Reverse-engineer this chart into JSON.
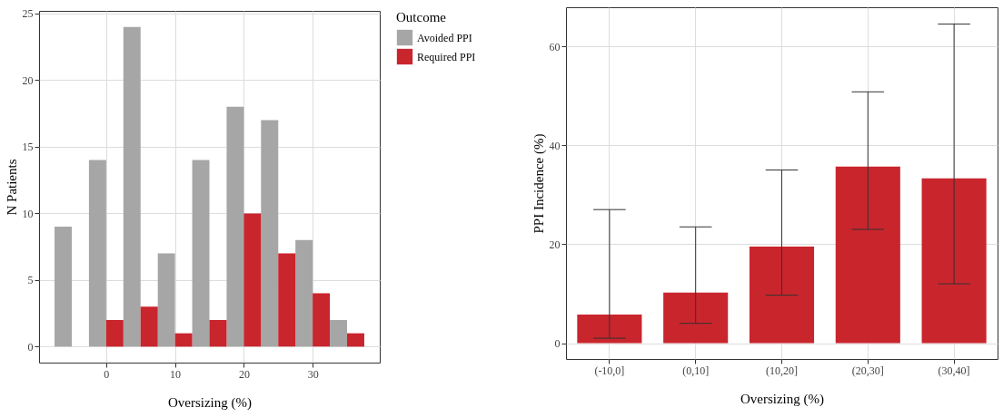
{
  "chart_data": [
    {
      "type": "bar",
      "xlabel": "Oversizing (%)",
      "ylabel": "N Patients",
      "legend_title": "Outcome",
      "legend": "right",
      "grid": true,
      "xlim": [
        -9.75,
        39.75
      ],
      "xticks": [
        0,
        10,
        20,
        30
      ],
      "ylim": [
        -1.2,
        25.2
      ],
      "yticks": [
        0,
        5,
        10,
        15,
        20,
        25
      ],
      "series": [
        {
          "name": "Avoided PPI",
          "color": "#a6a6a6",
          "x": [
            -6.25,
            -1.25,
            3.75,
            8.75,
            13.75,
            18.75,
            23.75,
            28.75,
            33.75
          ],
          "values": [
            9,
            14,
            24,
            7,
            14,
            18,
            17,
            8,
            2
          ]
        },
        {
          "name": "Required PPI",
          "color": "#c9252d",
          "x": [
            1.25,
            6.25,
            11.25,
            16.25,
            21.25,
            26.25,
            31.25,
            36.25
          ],
          "values": [
            2,
            3,
            1,
            2,
            10,
            7,
            4,
            1
          ]
        }
      ]
    },
    {
      "type": "bar",
      "xlabel": "Oversizing (%)",
      "ylabel": "PPI Incidence (%)",
      "grid": true,
      "color": "#c9252d",
      "categories": [
        "(-10,0]",
        "(0,10]",
        "(10,20]",
        "(20,30]",
        "(30,40]"
      ],
      "values": [
        5.8,
        10.2,
        19.5,
        35.7,
        33.3
      ],
      "errors": [
        [
          1,
          27
        ],
        [
          4,
          23.5
        ],
        [
          9.7,
          35
        ],
        [
          23,
          50.8
        ],
        [
          12,
          64.5
        ]
      ],
      "ylim": [
        -3.2,
        67.9
      ],
      "yticks": [
        0,
        20,
        40,
        60
      ]
    }
  ]
}
